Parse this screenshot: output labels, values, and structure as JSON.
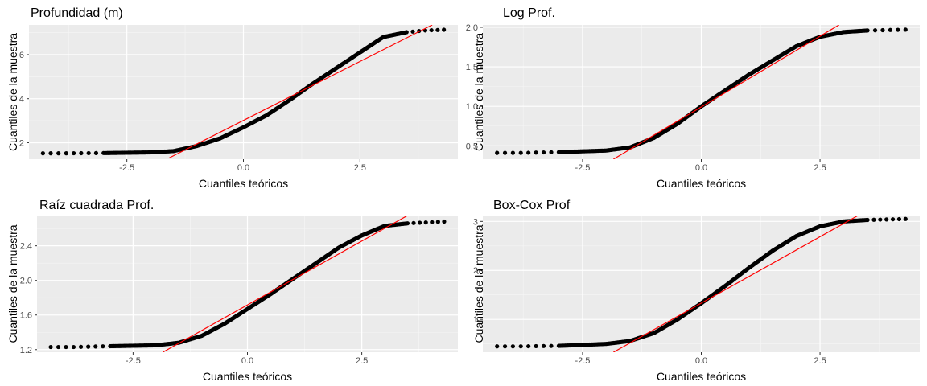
{
  "chart_data": [
    {
      "type": "scatter",
      "title": "Profundidad (m)",
      "xlabel": "Cuantiles teóricos",
      "ylabel": "Cuantiles de la muestra",
      "xlim": [
        -4.6,
        4.6
      ],
      "ylim": [
        1.25,
        7.35
      ],
      "x_ticks": [
        -2.5,
        0.0,
        2.5
      ],
      "x_tick_labels": [
        "-2.5",
        "0.0",
        "2.5"
      ],
      "y_ticks": [
        2,
        4,
        6
      ],
      "y_tick_labels": [
        "2",
        "4",
        "6"
      ],
      "grid": true,
      "points": [
        [
          -4.3,
          1.52
        ],
        [
          -3.8,
          1.52
        ],
        [
          -3.0,
          1.53
        ],
        [
          -2.0,
          1.56
        ],
        [
          -1.5,
          1.62
        ],
        [
          -1.0,
          1.85
        ],
        [
          -0.5,
          2.2
        ],
        [
          0.0,
          2.7
        ],
        [
          0.5,
          3.25
        ],
        [
          1.0,
          3.95
        ],
        [
          1.5,
          4.7
        ],
        [
          2.0,
          5.4
        ],
        [
          2.5,
          6.1
        ],
        [
          3.0,
          6.8
        ],
        [
          3.5,
          7.02
        ],
        [
          3.9,
          7.1
        ],
        [
          4.3,
          7.13
        ]
      ],
      "reference_line": [
        [
          -1.6,
          1.3
        ],
        [
          4.05,
          7.35
        ]
      ]
    },
    {
      "type": "scatter",
      "title": "Log Prof.",
      "xlabel": "Cuantiles teóricos",
      "ylabel": "Cuantiles de la muestra",
      "xlim": [
        -4.6,
        4.6
      ],
      "ylim": [
        0.33,
        2.03
      ],
      "x_ticks": [
        -2.5,
        0.0,
        2.5
      ],
      "x_tick_labels": [
        "-2.5",
        "0.0",
        "2.5"
      ],
      "y_ticks": [
        0.5,
        1.0,
        1.5,
        2.0
      ],
      "y_tick_labels": [
        "0.5",
        "1.0",
        "1.5",
        "2.0"
      ],
      "grid": true,
      "points": [
        [
          -4.3,
          0.41
        ],
        [
          -3.8,
          0.41
        ],
        [
          -3.0,
          0.42
        ],
        [
          -2.0,
          0.44
        ],
        [
          -1.5,
          0.48
        ],
        [
          -1.0,
          0.6
        ],
        [
          -0.5,
          0.78
        ],
        [
          0.0,
          1.0
        ],
        [
          0.5,
          1.2
        ],
        [
          1.0,
          1.4
        ],
        [
          1.5,
          1.58
        ],
        [
          2.0,
          1.76
        ],
        [
          2.5,
          1.88
        ],
        [
          3.0,
          1.94
        ],
        [
          3.5,
          1.96
        ],
        [
          4.3,
          1.97
        ]
      ],
      "reference_line": [
        [
          -1.85,
          0.33
        ],
        [
          2.9,
          2.03
        ]
      ]
    },
    {
      "type": "scatter",
      "title": "Raíz cuadrada Prof.",
      "xlabel": "Cuantiles teóricos",
      "ylabel": "Cuantiles de la muestra",
      "xlim": [
        -4.6,
        4.6
      ],
      "ylim": [
        1.17,
        2.75
      ],
      "x_ticks": [
        -2.5,
        0.0,
        2.5
      ],
      "x_tick_labels": [
        "-2.5",
        "0.0",
        "2.5"
      ],
      "y_ticks": [
        1.2,
        1.6,
        2.0,
        2.4
      ],
      "y_tick_labels": [
        "1.2",
        "1.6",
        "2.0",
        "2.4"
      ],
      "grid": true,
      "points": [
        [
          -4.3,
          1.23
        ],
        [
          -3.8,
          1.23
        ],
        [
          -3.0,
          1.24
        ],
        [
          -2.0,
          1.25
        ],
        [
          -1.5,
          1.28
        ],
        [
          -1.0,
          1.36
        ],
        [
          -0.5,
          1.5
        ],
        [
          0.0,
          1.67
        ],
        [
          0.5,
          1.84
        ],
        [
          1.0,
          2.02
        ],
        [
          1.5,
          2.2
        ],
        [
          2.0,
          2.38
        ],
        [
          2.5,
          2.52
        ],
        [
          3.0,
          2.63
        ],
        [
          3.5,
          2.66
        ],
        [
          3.9,
          2.67
        ],
        [
          4.3,
          2.68
        ]
      ],
      "reference_line": [
        [
          -1.85,
          1.17
        ],
        [
          3.5,
          2.75
        ]
      ]
    },
    {
      "type": "scatter",
      "title": "Box-Cox Prof",
      "xlabel": "Cuantiles teóricos",
      "ylabel": "Cuantiles de la muestra",
      "xlim": [
        -4.6,
        4.6
      ],
      "ylim": [
        0.33,
        3.12
      ],
      "x_ticks": [
        -2.5,
        0.0,
        2.5
      ],
      "x_tick_labels": [
        "-2.5",
        "0.0",
        "2.5"
      ],
      "y_ticks": [
        1,
        2,
        3
      ],
      "y_tick_labels": [
        "1",
        "2",
        "3"
      ],
      "grid": true,
      "points": [
        [
          -4.3,
          0.45
        ],
        [
          -3.8,
          0.45
        ],
        [
          -3.0,
          0.46
        ],
        [
          -2.0,
          0.5
        ],
        [
          -1.5,
          0.56
        ],
        [
          -1.0,
          0.72
        ],
        [
          -0.5,
          1.0
        ],
        [
          0.0,
          1.33
        ],
        [
          0.5,
          1.68
        ],
        [
          1.0,
          2.05
        ],
        [
          1.5,
          2.4
        ],
        [
          2.0,
          2.7
        ],
        [
          2.5,
          2.9
        ],
        [
          3.0,
          3.0
        ],
        [
          3.5,
          3.03
        ],
        [
          3.9,
          3.04
        ],
        [
          4.3,
          3.05
        ]
      ],
      "reference_line": [
        [
          -1.85,
          0.33
        ],
        [
          3.3,
          3.12
        ]
      ]
    }
  ]
}
